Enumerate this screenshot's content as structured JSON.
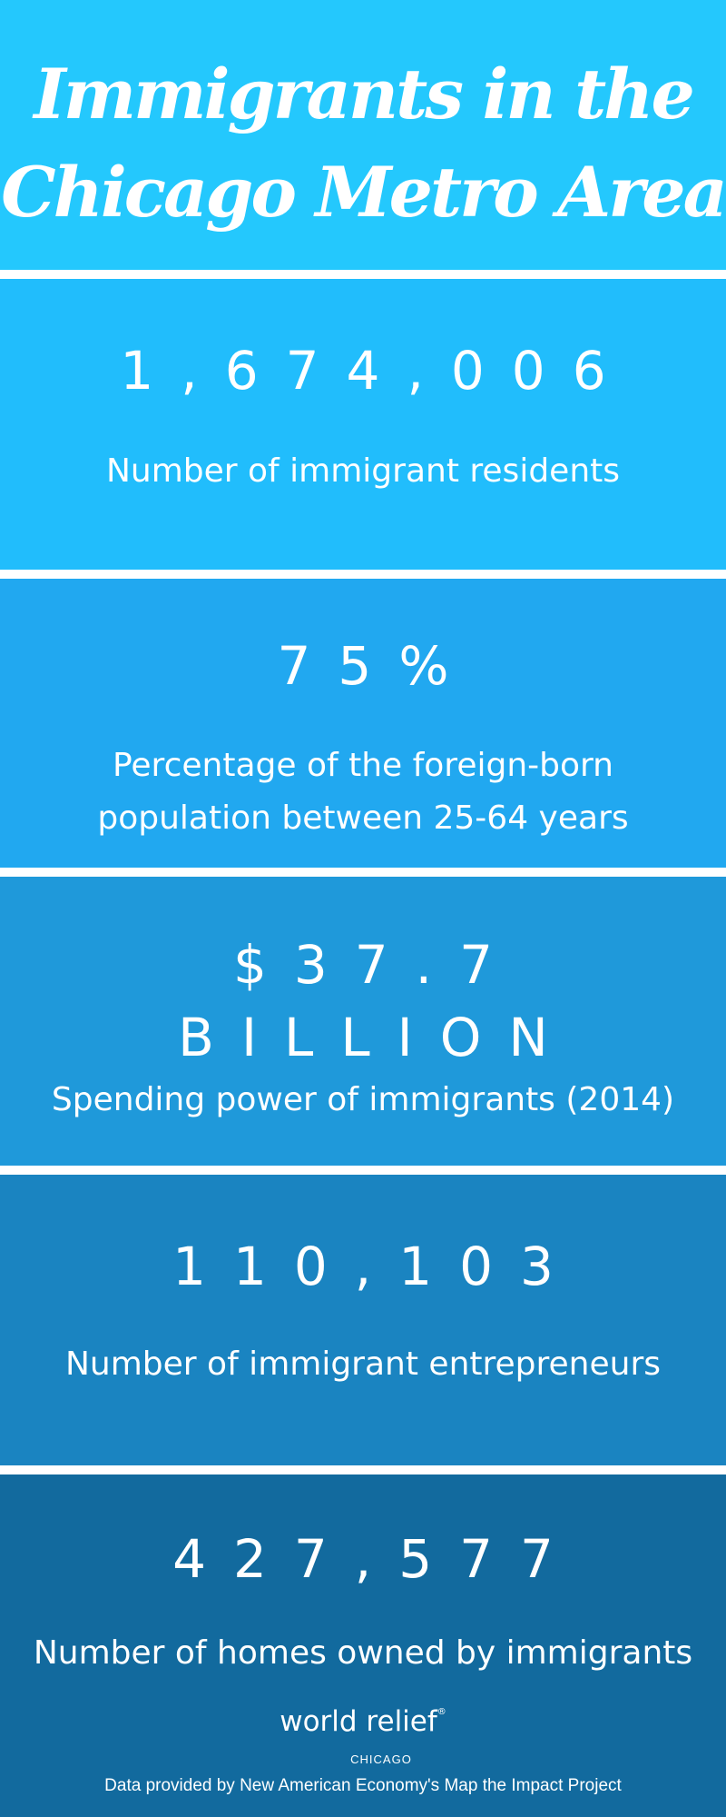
{
  "header": {
    "title_line1": "Immigrants in the",
    "title_line2": "Chicago Metro Area"
  },
  "stats": [
    {
      "value": "1,674,006",
      "label": "Number of immigrant residents"
    },
    {
      "value": "75%",
      "label_line1": "Percentage of the foreign-born",
      "label_line2": "population between 25-64 years"
    },
    {
      "value_line1": "$37.7",
      "value_line2": "BILLION",
      "label": "Spending power of immigrants (2014)"
    },
    {
      "value": "110,103",
      "label": "Number of immigrant entrepreneurs"
    },
    {
      "value": "427,577",
      "label": "Number of homes owned by immigrants"
    }
  ],
  "footer": {
    "logo_text": "world relief",
    "logo_mark": "®",
    "logo_subtext": "CHICAGO",
    "source": "Data provided by New American Economy's Map the Impact Project"
  },
  "colors": {
    "header_bg": "#24c8fd",
    "panel1_bg": "#21bdfc",
    "panel2_bg": "#21a8f0",
    "panel3_bg": "#1f99da",
    "panel4_bg": "#1a84c1",
    "panel5_bg": "#126a9e",
    "divider": "#ffffff",
    "text": "#ffffff"
  }
}
